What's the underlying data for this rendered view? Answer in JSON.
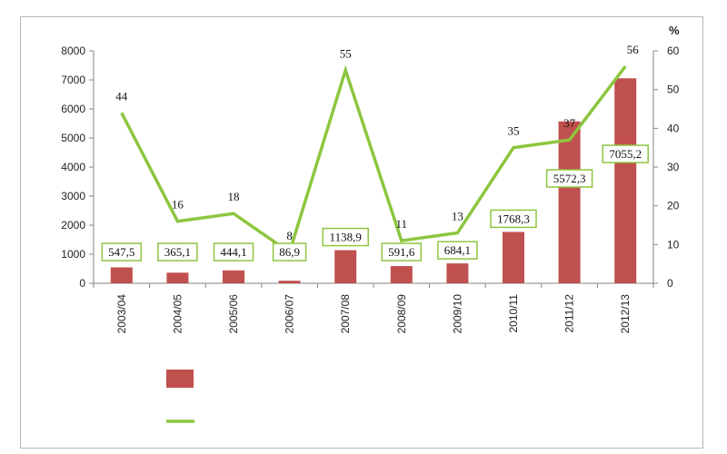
{
  "chart_data": {
    "type": "bar+line",
    "title": "",
    "categories": [
      "2003/04",
      "2004/05",
      "2005/06",
      "2006/07",
      "2007/08",
      "2008/09",
      "2009/10",
      "2010/11",
      "2011/12",
      "2012/13"
    ],
    "series": [
      {
        "type": "bar",
        "axis": "left",
        "color": "#c0504d",
        "values": [
          547.5,
          365.1,
          444.1,
          86.9,
          1138.9,
          591.6,
          684.1,
          1768.3,
          5572.3,
          7055.2
        ],
        "labels": [
          "547,5",
          "365,1",
          "444,1",
          "86,9",
          "1138,9",
          "591,6",
          "684,1",
          "1768,3",
          "5572,3",
          "7055,2"
        ]
      },
      {
        "type": "line",
        "axis": "right",
        "color": "#8dc63f",
        "values": [
          44,
          16,
          18,
          8,
          55,
          11,
          13,
          35,
          37,
          56
        ],
        "labels": [
          "44",
          "16",
          "18",
          "8",
          "55",
          "11",
          "13",
          "35",
          "37",
          "56"
        ]
      }
    ],
    "y_left": {
      "min": 0,
      "max": 8000,
      "ticks": [
        "0",
        "1000",
        "2000",
        "3000",
        "4000",
        "5000",
        "6000",
        "7000",
        "8000"
      ]
    },
    "y_right": {
      "min": 0,
      "max": 60,
      "unit": "%",
      "ticks": [
        "0",
        "10",
        "20",
        "30",
        "40",
        "50",
        "60"
      ]
    },
    "grid": false,
    "legend": {
      "position": "bottom",
      "entries": [
        "",
        ""
      ]
    }
  }
}
